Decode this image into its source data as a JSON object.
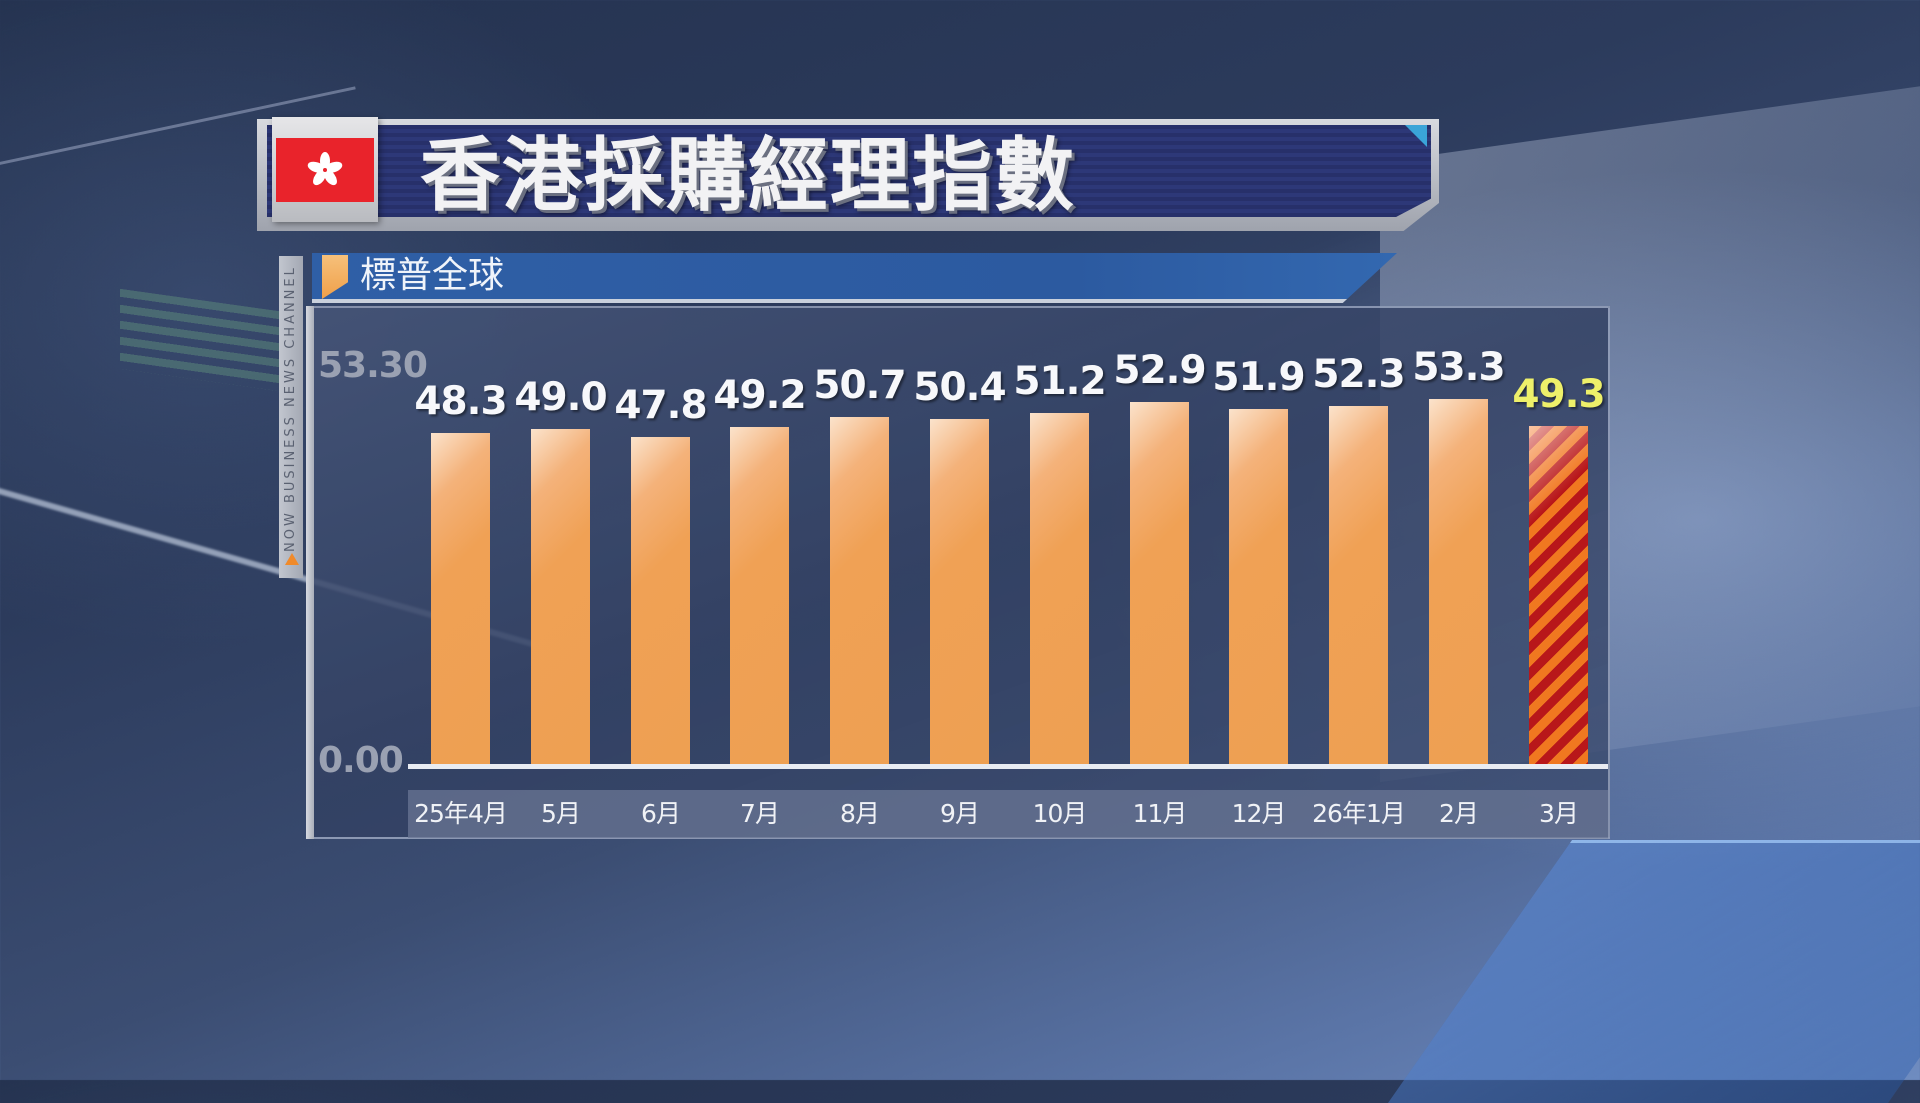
{
  "header": {
    "flag": "Hong Kong flag",
    "title": "香港採購經理指數",
    "subtitle": "標普全球",
    "channel": "NOW BUSINESS NEWS CHANNEL"
  },
  "colors": {
    "bar": "#EFA055",
    "highlight_stripe_a": "#F07820",
    "highlight_stripe_b": "#B8171A",
    "highlight_label": "#EEF06A",
    "title_bg": "#2A3471",
    "subtitle_bg": "#2F5FA6"
  },
  "chart_data": {
    "type": "bar",
    "title": "香港採購經理指數",
    "subtitle": "標普全球",
    "categories": [
      "25年4月",
      "5月",
      "6月",
      "7月",
      "8月",
      "9月",
      "10月",
      "11月",
      "12月",
      "26年1月",
      "2月",
      "3月"
    ],
    "values": [
      48.3,
      49.0,
      47.8,
      49.2,
      50.7,
      50.4,
      51.2,
      52.9,
      51.9,
      52.3,
      53.3,
      49.3
    ],
    "value_labels": [
      "48.3",
      "49.0",
      "47.8",
      "49.2",
      "50.7",
      "50.4",
      "51.2",
      "52.9",
      "51.9",
      "52.3",
      "53.3",
      "49.3"
    ],
    "highlighted_index": 11,
    "y_tick_labels": [
      "53.30",
      "0.00"
    ],
    "ylim": [
      0,
      53.3
    ],
    "xlabel": "",
    "ylabel": "",
    "grid": false,
    "legend": "none"
  }
}
